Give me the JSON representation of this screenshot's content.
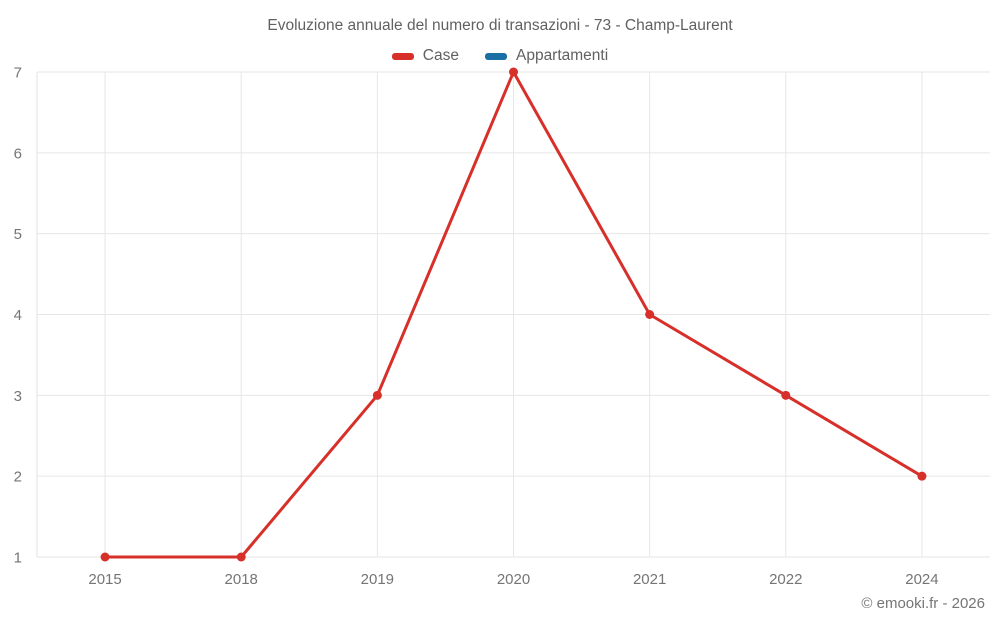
{
  "title": "Evoluzione annuale del numero di transazioni - 73 - Champ-Laurent",
  "legend": [
    {
      "label": "Case",
      "color": "#d7302a"
    },
    {
      "label": "Appartamenti",
      "color": "#1a6fa5"
    }
  ],
  "footer": {
    "copyright": "© emooki.fr - 2026"
  },
  "colors": {
    "case_red": "#d7302a",
    "appartamenti_blue": "#1a6fa5",
    "gridline": "#e6e6e6",
    "axis_line": "#e0e0e0",
    "tick_text": "#757575"
  },
  "chart_data": {
    "type": "line",
    "title": "Evoluzione annuale del numero di transazioni - 73 - Champ-Laurent",
    "categories": [
      "2015",
      "2018",
      "2019",
      "2020",
      "2021",
      "2022",
      "2024"
    ],
    "series": [
      {
        "name": "Case",
        "color": "#d7302a",
        "values": [
          1,
          1,
          3,
          7,
          4,
          3,
          2
        ]
      },
      {
        "name": "Appartamenti",
        "color": "#1a6fa5",
        "values": []
      }
    ],
    "xlabel": "",
    "ylabel": "",
    "ylim": [
      1,
      7
    ],
    "y_ticks": [
      1,
      2,
      3,
      4,
      5,
      6,
      7
    ],
    "grid": true,
    "legend_position": "top",
    "marker": "circle",
    "marker_radius": 4.5,
    "line_width": 3
  }
}
